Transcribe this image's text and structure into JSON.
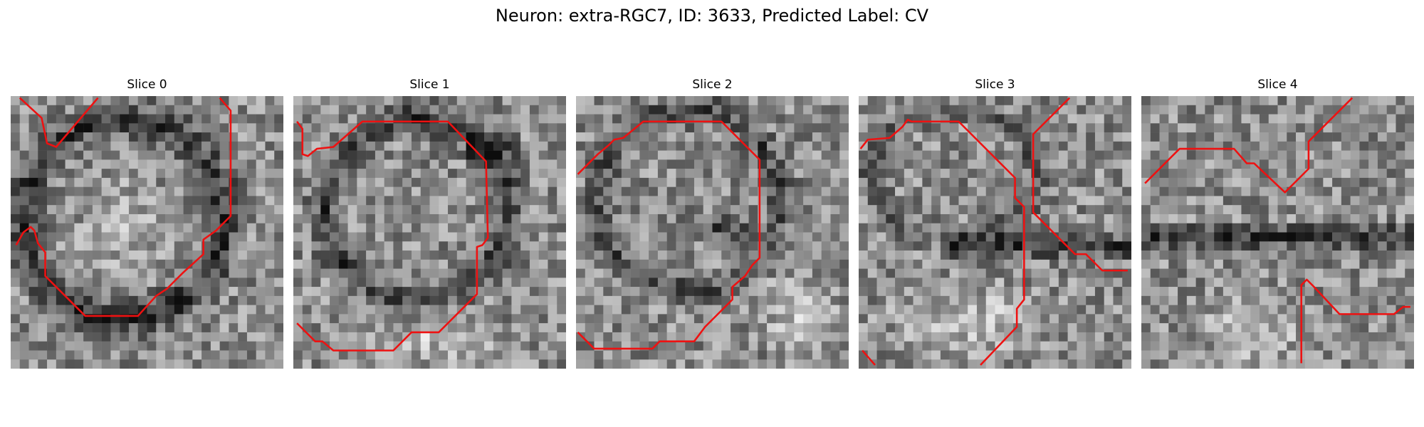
{
  "figure": {
    "title": "Neuron: extra-RGC7, ID: 3633, Predicted Label: CV"
  },
  "panels": [
    {
      "title": "Slice 0"
    },
    {
      "title": "Slice 1"
    },
    {
      "title": "Slice 2"
    },
    {
      "title": "Slice 3"
    },
    {
      "title": "Slice 4"
    }
  ],
  "colors": {
    "contour": "#ee1111",
    "background": "#ffffff"
  }
}
